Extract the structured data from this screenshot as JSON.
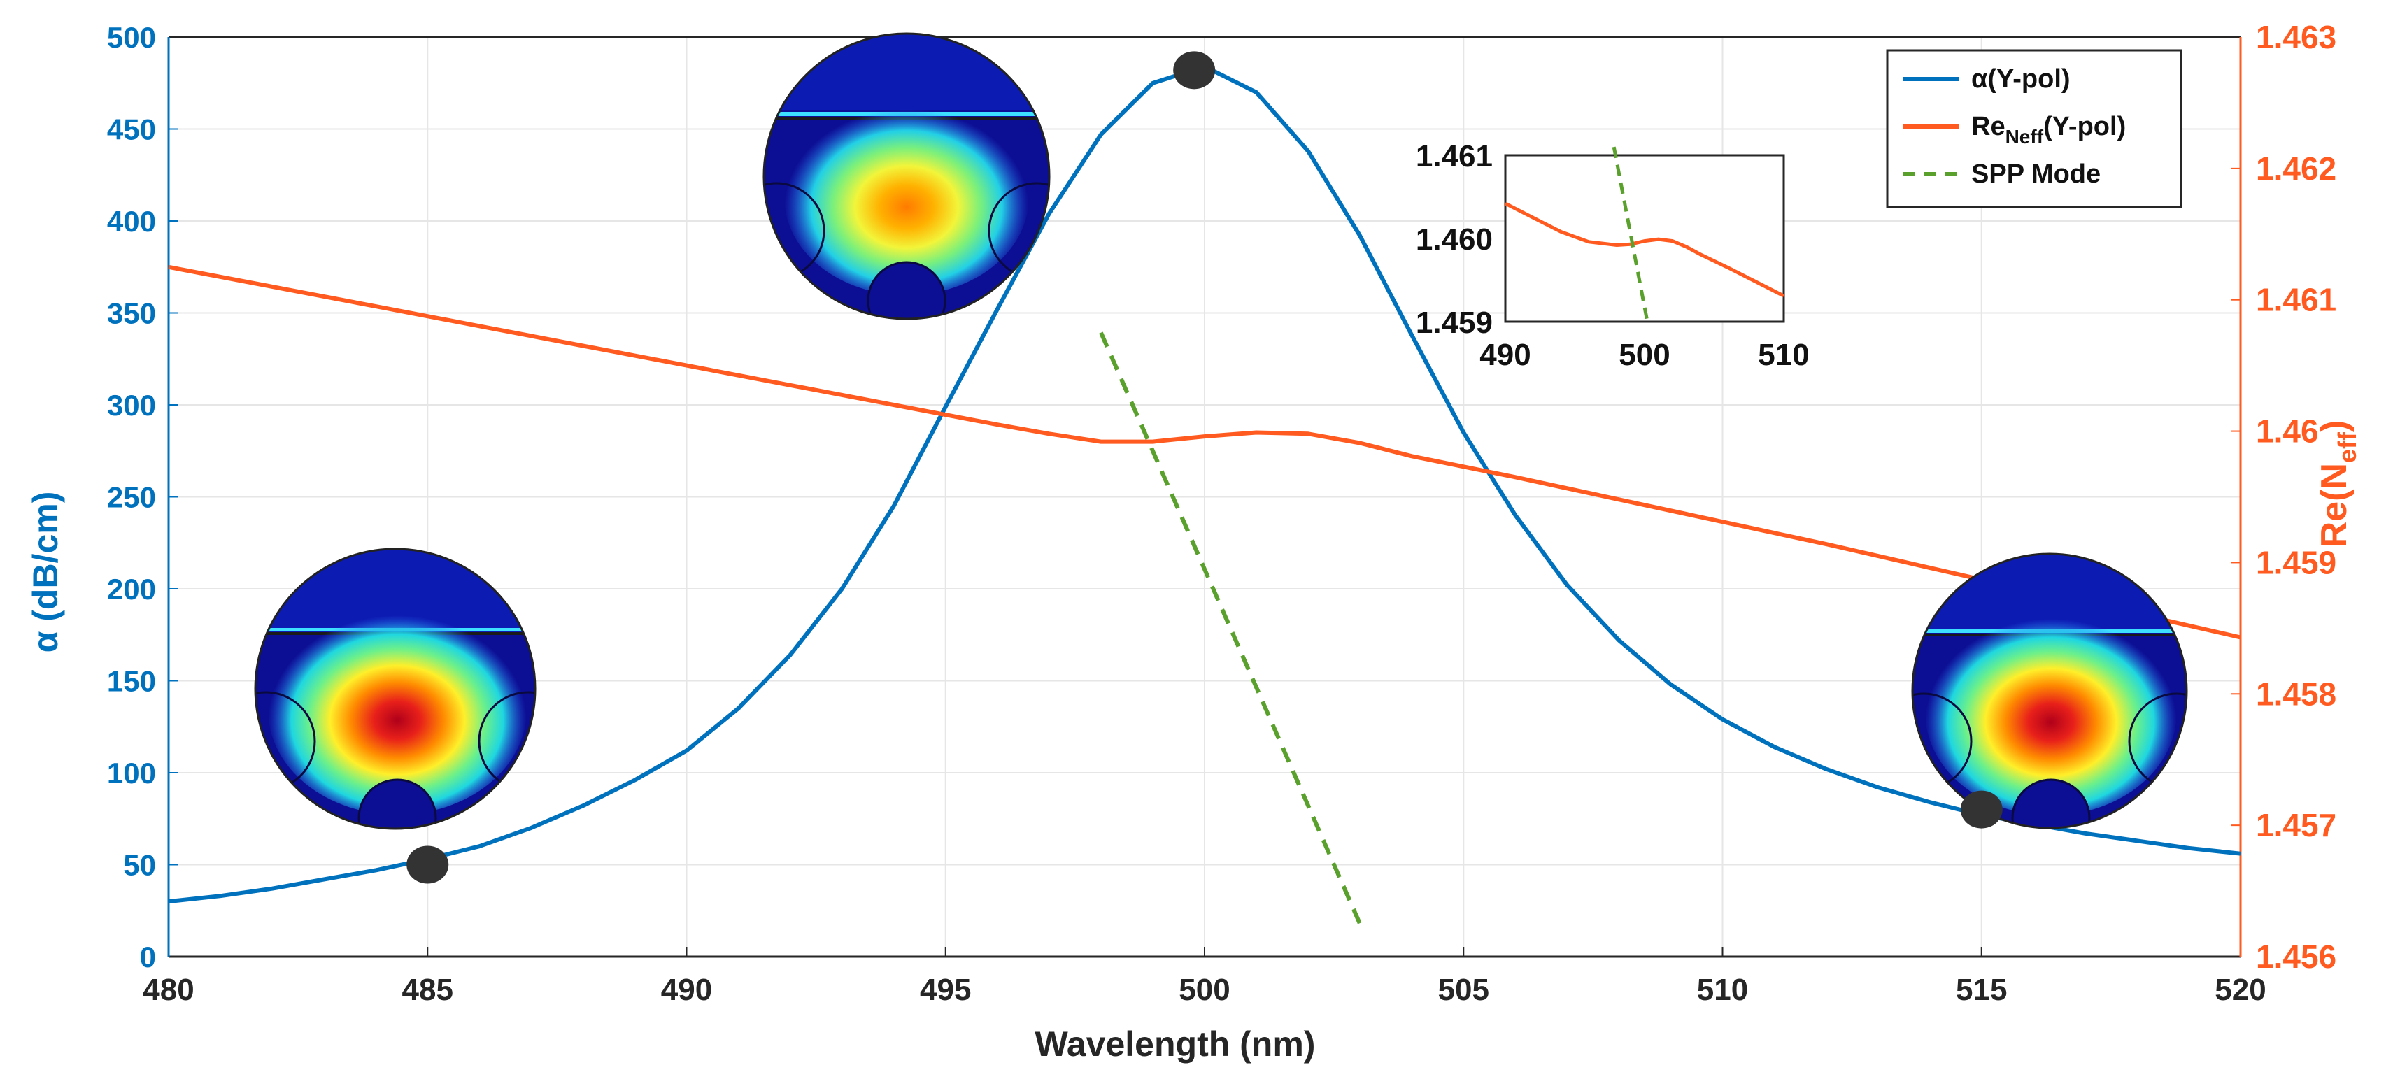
{
  "chart_data": {
    "type": "line",
    "xlabel": "Wavelength (nm)",
    "ylabel_left": "α (dB/cm)",
    "ylabel_right_base": "Re(N",
    "ylabel_right_sub": "eff",
    "ylabel_right_close": ")",
    "xlim": [
      480,
      520
    ],
    "ylim_left": [
      0,
      500
    ],
    "ylim_right": [
      1.456,
      1.463
    ],
    "grid": true,
    "x_ticks": [
      "480",
      "485",
      "490",
      "495",
      "500",
      "505",
      "510",
      "515",
      "520"
    ],
    "y_left_ticks": [
      "0",
      "50",
      "100",
      "150",
      "200",
      "250",
      "300",
      "350",
      "400",
      "450",
      "500"
    ],
    "y_right_ticks": [
      "1.456",
      "1.457",
      "1.458",
      "1.459",
      "1.46",
      "1.461",
      "1.462",
      "1.463"
    ],
    "colors": {
      "alpha": "#0072BD",
      "neff": "#ff5a1f",
      "spp": "#5aa02c",
      "marker": "#333333"
    },
    "series": [
      {
        "name": "α(Y-pol)",
        "axis": "left",
        "x": [
          480,
          481,
          482,
          483,
          484,
          485,
          486,
          487,
          488,
          489,
          490,
          491,
          492,
          493,
          494,
          495,
          496,
          497,
          498,
          499,
          500,
          501,
          502,
          503,
          504,
          505,
          506,
          507,
          508,
          509,
          510,
          511,
          512,
          513,
          514,
          515,
          516,
          517,
          518,
          519,
          520
        ],
        "y": [
          30,
          33,
          37,
          42,
          47,
          53,
          60,
          70,
          82,
          96,
          112,
          135,
          164,
          200,
          245,
          299,
          352,
          404,
          447,
          475,
          484,
          470,
          438,
          392,
          338,
          285,
          240,
          202,
          172,
          148,
          129,
          114,
          102,
          92,
          84,
          77,
          72,
          67,
          63,
          59,
          56
        ]
      },
      {
        "name": "ReNeff(Y-pol)",
        "axis": "right",
        "x": [
          480,
          482,
          484,
          486,
          488,
          490,
          492,
          494,
          496,
          497,
          498,
          499,
          500,
          501,
          502,
          503,
          504,
          506,
          508,
          510,
          512,
          514,
          516,
          518,
          520
        ],
        "y": [
          1.46125,
          1.4611,
          1.46095,
          1.4608,
          1.46065,
          1.4605,
          1.46035,
          1.4602,
          1.46005,
          1.45998,
          1.45992,
          1.45992,
          1.45996,
          1.45999,
          1.45998,
          1.45991,
          1.45981,
          1.45965,
          1.45948,
          1.45931,
          1.45914,
          1.45896,
          1.45878,
          1.45861,
          1.45843
        ]
      },
      {
        "name": "SPP Mode",
        "axis": "right",
        "dashed": true,
        "x": [
          498,
          503
        ],
        "y": [
          1.46075,
          1.45625
        ]
      }
    ],
    "legend": [
      {
        "pre": "α(Y-pol)",
        "sub": "",
        "post": "",
        "style": "solid",
        "color": "#0072BD"
      },
      {
        "pre": "Re",
        "sub": "Neff",
        "post": "(Y-pol)",
        "style": "solid",
        "color": "#ff5a1f"
      },
      {
        "pre": "SPP Mode",
        "sub": "",
        "post": "",
        "style": "dashed",
        "color": "#5aa02c"
      }
    ],
    "markers": [
      {
        "x": 485,
        "y": 50
      },
      {
        "x": 499.8,
        "y": 482
      },
      {
        "x": 515,
        "y": 80
      }
    ],
    "inset": {
      "xlim": [
        490,
        510
      ],
      "ylim": [
        1.459,
        1.461
      ],
      "x_ticks": [
        "490",
        "500",
        "510"
      ],
      "y_ticks": [
        "1.459",
        "1.460",
        "1.461"
      ],
      "neff": {
        "x": [
          490,
          492,
          494,
          496,
          498,
          499,
          500,
          501,
          502,
          503,
          504,
          506,
          508,
          510
        ],
        "y": [
          1.46042,
          1.46025,
          1.46008,
          1.45996,
          1.45992,
          1.45993,
          1.45997,
          1.45999,
          1.45997,
          1.4599,
          1.45981,
          1.45965,
          1.45948,
          1.45931
        ]
      },
      "spp": {
        "x": [
          497.8,
          500.2
        ],
        "y": [
          1.4611,
          1.459
        ]
      }
    }
  }
}
